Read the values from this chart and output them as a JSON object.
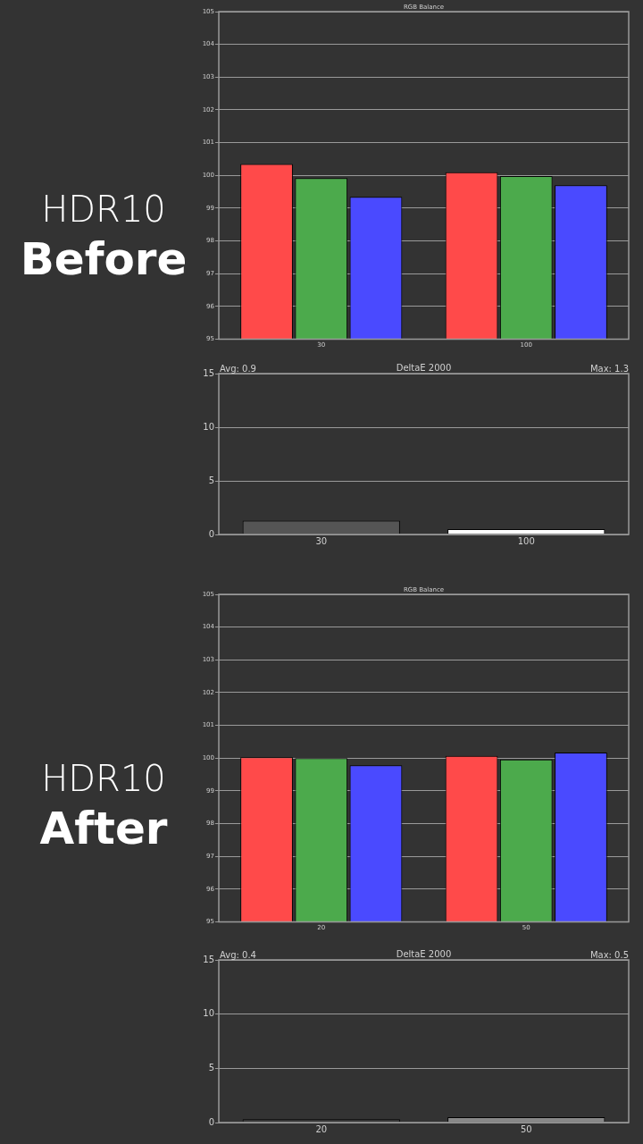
{
  "chart_data": [
    {
      "type": "bar",
      "title": "RGB Balance",
      "annotations": [
        "HDR10",
        "Before"
      ],
      "categories": [
        "30",
        "100"
      ],
      "series": [
        {
          "color": "#ff4a4a",
          "values": [
            100.35,
            100.1
          ]
        },
        {
          "color": "#4caa4c",
          "values": [
            99.92,
            99.98
          ]
        },
        {
          "color": "#4a4aff",
          "values": [
            99.35,
            99.7
          ]
        }
      ],
      "ylim": [
        95,
        105
      ],
      "yticks": [
        95,
        96,
        97,
        98,
        99,
        100,
        101,
        102,
        103,
        104,
        105
      ],
      "grid": "y"
    },
    {
      "type": "bar",
      "title": "DeltaE 2000",
      "annotations": [
        "Avg: 0.9",
        "Max: 1.3"
      ],
      "categories": [
        "30",
        "100"
      ],
      "values": [
        1.3,
        0.5
      ],
      "colors": [
        "#555555",
        "#ffffff"
      ],
      "ylim": [
        0,
        15
      ],
      "yticks": [
        0,
        5,
        10,
        15
      ],
      "grid": "y"
    },
    {
      "type": "bar",
      "title": "RGB Balance",
      "annotations": [
        "HDR10",
        "After"
      ],
      "categories": [
        "20",
        "50"
      ],
      "series": [
        {
          "color": "#ff4a4a",
          "values": [
            100.03,
            100.07
          ]
        },
        {
          "color": "#4caa4c",
          "values": [
            100.0,
            99.96
          ]
        },
        {
          "color": "#4a4aff",
          "values": [
            99.78,
            100.17
          ]
        }
      ],
      "ylim": [
        95,
        105
      ],
      "yticks": [
        95,
        96,
        97,
        98,
        99,
        100,
        101,
        102,
        103,
        104,
        105
      ],
      "grid": "y"
    },
    {
      "type": "bar",
      "title": "DeltaE 2000",
      "annotations": [
        "Avg: 0.4",
        "Max: 0.5"
      ],
      "categories": [
        "20",
        "50"
      ],
      "values": [
        0.3,
        0.5
      ],
      "colors": [
        "#3a3a3a",
        "#888888"
      ],
      "ylim": [
        0,
        15
      ],
      "yticks": [
        0,
        5,
        10,
        15
      ],
      "grid": "y"
    }
  ]
}
